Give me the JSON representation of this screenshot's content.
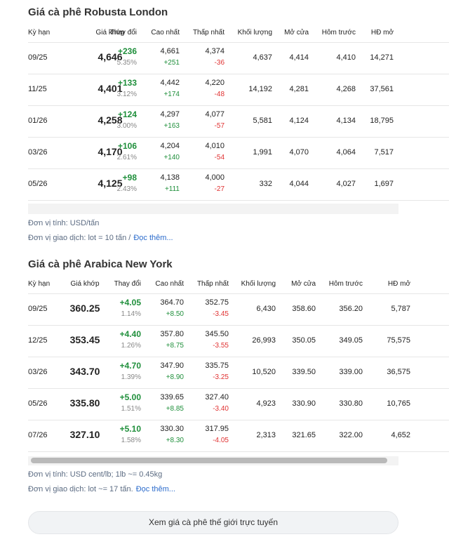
{
  "sections": [
    {
      "title": "Giá cà phê Robusta London",
      "headers": [
        "Kỳ hạn",
        "Giá khớp",
        "Thay đổi",
        "Cao nhất",
        "Thấp nhất",
        "Khối lượng",
        "Mở cửa",
        "Hôm trước",
        "HĐ mở"
      ],
      "rows": [
        {
          "term": "09/25",
          "price": "4,646",
          "change": "+236",
          "change_pct": "5.35%",
          "high": "4,661",
          "high_change": "+251",
          "low": "4,374",
          "low_change": "-36",
          "volume": "4,637",
          "open": "4,414",
          "prev_close": "4,410",
          "open_interest": "14,271"
        },
        {
          "term": "11/25",
          "price": "4,401",
          "change": "+133",
          "change_pct": "3.12%",
          "high": "4,442",
          "high_change": "+174",
          "low": "4,220",
          "low_change": "-48",
          "volume": "14,192",
          "open": "4,281",
          "prev_close": "4,268",
          "open_interest": "37,561"
        },
        {
          "term": "01/26",
          "price": "4,258",
          "change": "+124",
          "change_pct": "3.00%",
          "high": "4,297",
          "high_change": "+163",
          "low": "4,077",
          "low_change": "-57",
          "volume": "5,581",
          "open": "4,124",
          "prev_close": "4,134",
          "open_interest": "18,795"
        },
        {
          "term": "03/26",
          "price": "4,170",
          "change": "+106",
          "change_pct": "2.61%",
          "high": "4,204",
          "high_change": "+140",
          "low": "4,010",
          "low_change": "-54",
          "volume": "1,991",
          "open": "4,070",
          "prev_close": "4,064",
          "open_interest": "7,517"
        },
        {
          "term": "05/26",
          "price": "4,125",
          "change": "+98",
          "change_pct": "2.43%",
          "high": "4,138",
          "high_change": "+111",
          "low": "4,000",
          "low_change": "-27",
          "volume": "332",
          "open": "4,044",
          "prev_close": "4,027",
          "open_interest": "1,697"
        }
      ],
      "notes": [
        "Đơn vị tính: USD/tấn",
        "Đơn vị giao dịch: lot = 10 tấn /"
      ],
      "read_more": "Đọc thêm..."
    },
    {
      "title": "Giá cà phê Arabica New York",
      "headers": [
        "Kỳ hạn",
        "Giá khớp",
        "Thay đổi",
        "Cao nhất",
        "Thấp nhất",
        "Khối lượng",
        "Mở cửa",
        "Hôm trước",
        "HĐ mở"
      ],
      "rows": [
        {
          "term": "09/25",
          "price": "360.25",
          "change": "+4.05",
          "change_pct": "1.14%",
          "high": "364.70",
          "high_change": "+8.50",
          "low": "352.75",
          "low_change": "-3.45",
          "volume": "6,430",
          "open": "358.60",
          "prev_close": "356.20",
          "open_interest": "5,787"
        },
        {
          "term": "12/25",
          "price": "353.45",
          "change": "+4.40",
          "change_pct": "1.26%",
          "high": "357.80",
          "high_change": "+8.75",
          "low": "345.50",
          "low_change": "-3.55",
          "volume": "26,993",
          "open": "350.05",
          "prev_close": "349.05",
          "open_interest": "75,575"
        },
        {
          "term": "03/26",
          "price": "343.70",
          "change": "+4.70",
          "change_pct": "1.39%",
          "high": "347.90",
          "high_change": "+8.90",
          "low": "335.75",
          "low_change": "-3.25",
          "volume": "10,520",
          "open": "339.50",
          "prev_close": "339.00",
          "open_interest": "36,575"
        },
        {
          "term": "05/26",
          "price": "335.80",
          "change": "+5.00",
          "change_pct": "1.51%",
          "high": "339.65",
          "high_change": "+8.85",
          "low": "327.40",
          "low_change": "-3.40",
          "volume": "4,923",
          "open": "330.90",
          "prev_close": "330.80",
          "open_interest": "10,765"
        },
        {
          "term": "07/26",
          "price": "327.10",
          "change": "+5.10",
          "change_pct": "1.58%",
          "high": "330.30",
          "high_change": "+8.30",
          "low": "317.95",
          "low_change": "-4.05",
          "volume": "2,313",
          "open": "321.65",
          "prev_close": "322.00",
          "open_interest": "4,652"
        }
      ],
      "notes": [
        "Đơn vị tính: USD cent/lb; 1lb ~= 0.45kg",
        "Đơn vị giao dịch: lot ~= 17 tấn."
      ],
      "read_more": "Đọc thêm..."
    }
  ],
  "button": "Xem giá cà phê thế giới trực tuyến"
}
